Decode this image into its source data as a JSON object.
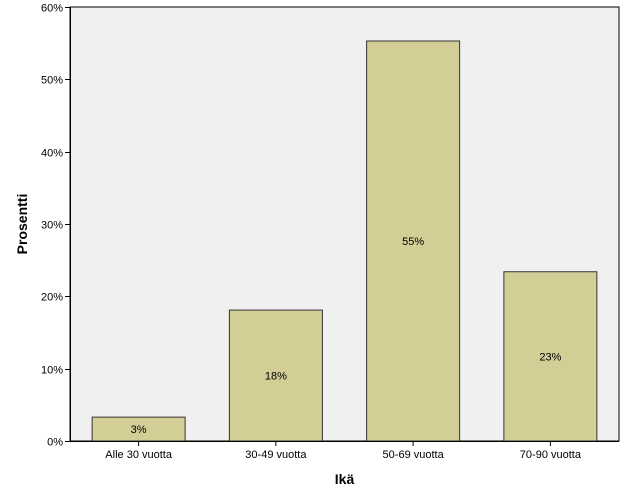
{
  "chart_data": {
    "type": "bar",
    "title": "",
    "xlabel": "Ikä",
    "ylabel": "Prosentti",
    "categories": [
      "Alle 30 vuotta",
      "30-49 vuotta",
      "50-69 vuotta",
      "70-90 vuotta"
    ],
    "values": [
      3.3,
      18.1,
      55.3,
      23.4
    ],
    "data_labels": [
      "3%",
      "18%",
      "55%",
      "23%"
    ],
    "ylim": [
      0,
      60
    ],
    "yticks": [
      0,
      10,
      20,
      30,
      40,
      50,
      60
    ],
    "ytick_labels": [
      "0%",
      "10%",
      "20%",
      "30%",
      "40%",
      "50%",
      "60%"
    ],
    "grid": false,
    "legend": "none",
    "colors": {
      "bar_fill": "#d3cd96",
      "bar_stroke": "#333333",
      "plot_background": "#f0f0f0",
      "axis": "#000000"
    }
  }
}
